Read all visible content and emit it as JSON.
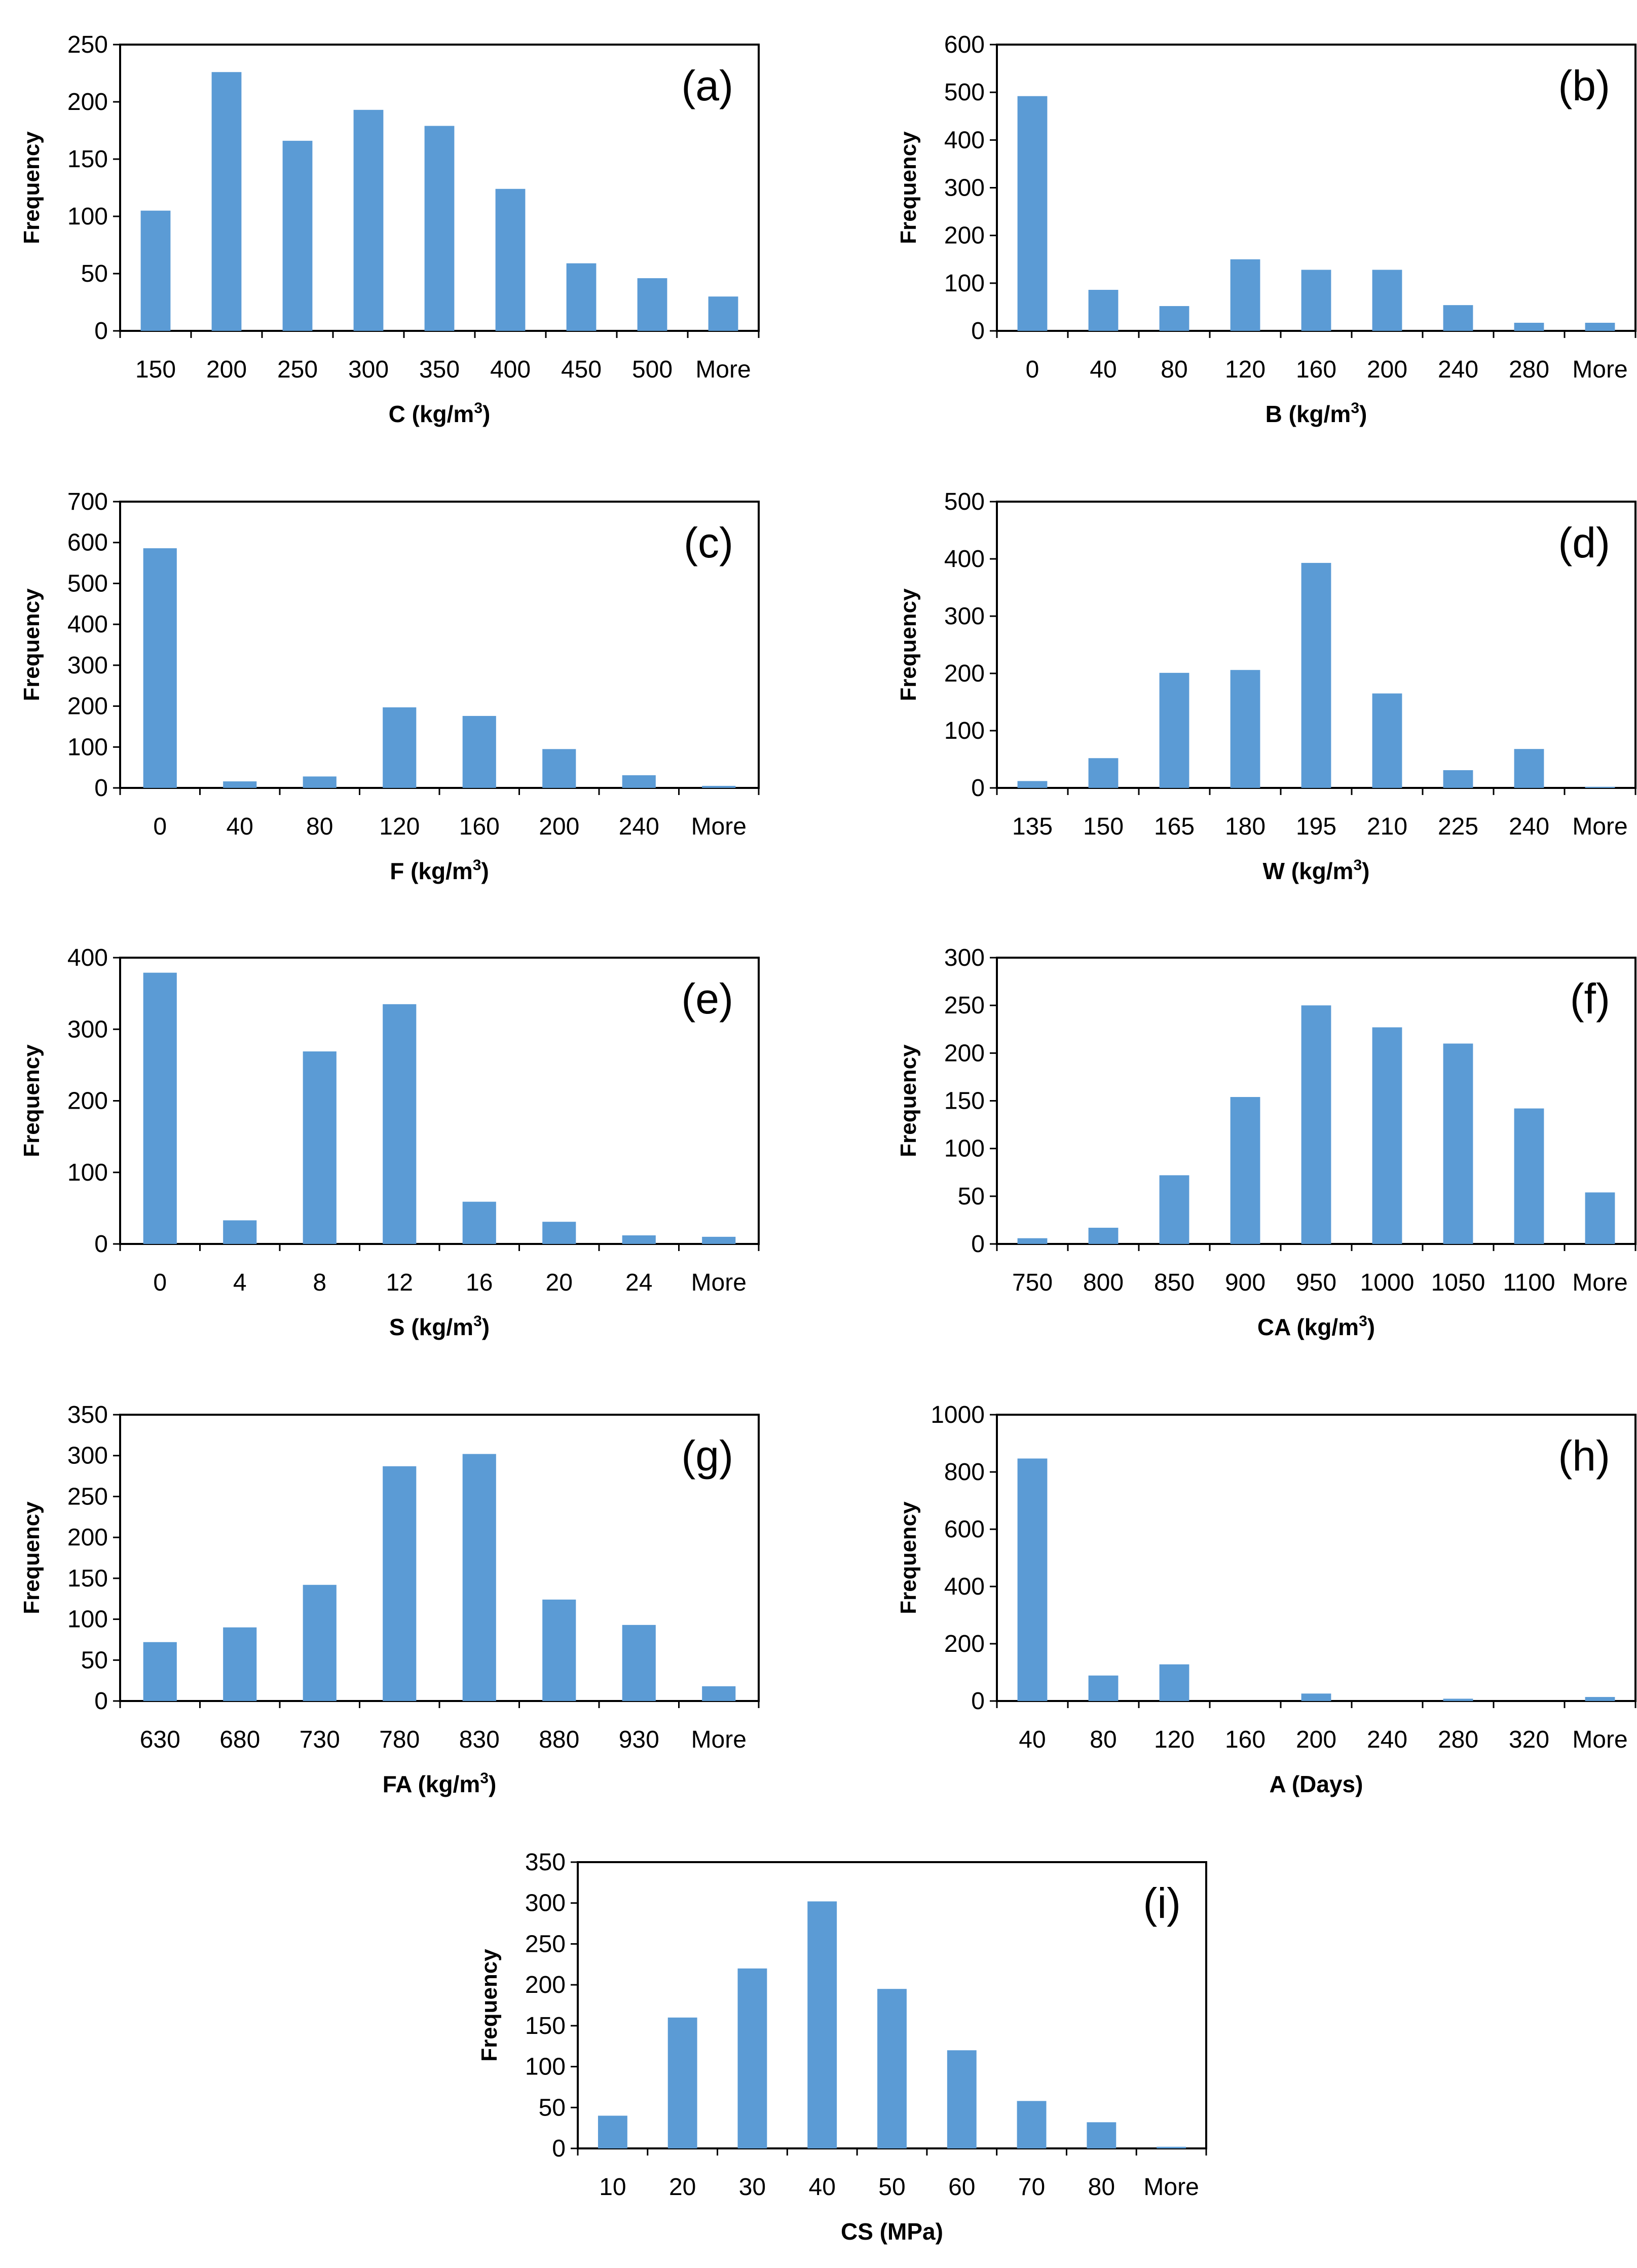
{
  "figure": {
    "bar_color": "#5b9bd5",
    "axis_color": "#000000"
  },
  "chart_data": [
    {
      "type": "bar",
      "panel": "(a)",
      "xlabel": "C (kg/m",
      "xlabel_sup": "3",
      "xlabel_tail": ")",
      "ylabel": "Frequency",
      "categories": [
        "150",
        "200",
        "250",
        "300",
        "350",
        "400",
        "450",
        "500",
        "More"
      ],
      "values": [
        105,
        226,
        166,
        193,
        179,
        124,
        59,
        46,
        30
      ],
      "ylim": [
        0,
        250
      ],
      "yticks": [
        "0",
        "50",
        "100",
        "150",
        "200",
        "250"
      ]
    },
    {
      "type": "bar",
      "panel": "(b)",
      "xlabel": "B (kg/m",
      "xlabel_sup": "3",
      "xlabel_tail": ")",
      "ylabel": "Frequency",
      "categories": [
        "0",
        "40",
        "80",
        "120",
        "160",
        "200",
        "240",
        "280",
        "More"
      ],
      "values": [
        492,
        86,
        52,
        150,
        128,
        128,
        54,
        17,
        17
      ],
      "ylim": [
        0,
        600
      ],
      "yticks": [
        "0",
        "100",
        "200",
        "300",
        "400",
        "500",
        "600"
      ]
    },
    {
      "type": "bar",
      "panel": "(c)",
      "xlabel": "F (kg/m",
      "xlabel_sup": "3",
      "xlabel_tail": ")",
      "ylabel": "Frequency",
      "categories": [
        "0",
        "40",
        "80",
        "120",
        "160",
        "200",
        "240",
        "More"
      ],
      "values": [
        586,
        16,
        28,
        197,
        176,
        95,
        31,
        5
      ],
      "ylim": [
        0,
        700
      ],
      "yticks": [
        "0",
        "100",
        "200",
        "300",
        "400",
        "500",
        "600",
        "700"
      ]
    },
    {
      "type": "bar",
      "panel": "(d)",
      "xlabel": "W (kg/m",
      "xlabel_sup": "3",
      "xlabel_tail": ")",
      "ylabel": "Frequency",
      "categories": [
        "135",
        "150",
        "165",
        "180",
        "195",
        "210",
        "225",
        "240",
        "More"
      ],
      "values": [
        12,
        52,
        201,
        206,
        393,
        165,
        31,
        68,
        2
      ],
      "ylim": [
        0,
        500
      ],
      "yticks": [
        "0",
        "100",
        "200",
        "300",
        "400",
        "500"
      ]
    },
    {
      "type": "bar",
      "panel": "(e)",
      "xlabel": "S (kg/m",
      "xlabel_sup": "3",
      "xlabel_tail": ")",
      "ylabel": "Frequency",
      "categories": [
        "0",
        "4",
        "8",
        "12",
        "16",
        "20",
        "24",
        "More"
      ],
      "values": [
        379,
        33,
        269,
        335,
        59,
        31,
        12,
        10
      ],
      "ylim": [
        0,
        400
      ],
      "yticks": [
        "0",
        "100",
        "200",
        "300",
        "400"
      ]
    },
    {
      "type": "bar",
      "panel": "(f)",
      "xlabel": "CA (kg/m",
      "xlabel_sup": "3",
      "xlabel_tail": ")",
      "ylabel": "Frequency",
      "categories": [
        "750",
        "800",
        "850",
        "900",
        "950",
        "1000",
        "1050",
        "1100",
        "More"
      ],
      "values": [
        6,
        17,
        72,
        154,
        250,
        227,
        210,
        142,
        54
      ],
      "ylim": [
        0,
        300
      ],
      "yticks": [
        "0",
        "50",
        "100",
        "150",
        "200",
        "250",
        "300"
      ]
    },
    {
      "type": "bar",
      "panel": "(g)",
      "xlabel": "FA (kg/m",
      "xlabel_sup": "3",
      "xlabel_tail": ")",
      "ylabel": "Frequency",
      "categories": [
        "630",
        "680",
        "730",
        "780",
        "830",
        "880",
        "930",
        "More"
      ],
      "values": [
        72,
        90,
        142,
        287,
        302,
        124,
        93,
        18
      ],
      "ylim": [
        0,
        350
      ],
      "yticks": [
        "0",
        "50",
        "100",
        "150",
        "200",
        "250",
        "300",
        "350"
      ]
    },
    {
      "type": "bar",
      "panel": "(h)",
      "xlabel": "A (Days)",
      "xlabel_sup": "",
      "xlabel_tail": "",
      "ylabel": "Frequency",
      "categories": [
        "40",
        "80",
        "120",
        "160",
        "200",
        "240",
        "280",
        "320",
        "More"
      ],
      "values": [
        847,
        89,
        128,
        0,
        26,
        0,
        8,
        0,
        14
      ],
      "ylim": [
        0,
        1000
      ],
      "yticks": [
        "0",
        "200",
        "400",
        "600",
        "800",
        "1000"
      ]
    },
    {
      "type": "bar",
      "panel": "(i)",
      "xlabel": "CS (MPa)",
      "xlabel_sup": "",
      "xlabel_tail": "",
      "ylabel": "Frequency",
      "categories": [
        "10",
        "20",
        "30",
        "40",
        "50",
        "60",
        "70",
        "80",
        "More"
      ],
      "values": [
        40,
        160,
        220,
        302,
        195,
        120,
        58,
        32,
        2
      ],
      "ylim": [
        0,
        350
      ],
      "yticks": [
        "0",
        "50",
        "100",
        "150",
        "200",
        "250",
        "300",
        "350"
      ]
    }
  ]
}
